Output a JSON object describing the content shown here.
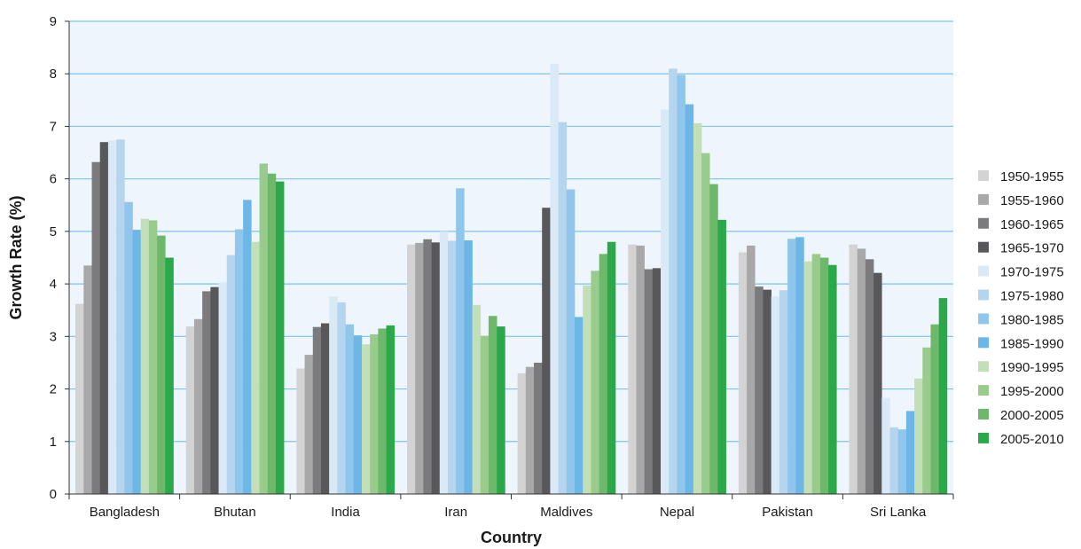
{
  "chart_data": {
    "type": "bar",
    "title": "",
    "xlabel": "Country",
    "ylabel": "Growth Rate (%)",
    "ylim": [
      0,
      9
    ],
    "yticks": [
      0,
      1,
      2,
      3,
      4,
      5,
      6,
      7,
      8,
      9
    ],
    "grid": true,
    "legend_position": "right",
    "plot_background": "#eef5fc",
    "grid_color": "#7fc4e8",
    "categories": [
      "Bangladesh",
      "Bhutan",
      "India",
      "Iran",
      "Maldives",
      "Nepal",
      "Pakistan",
      "Sri Lanka"
    ],
    "series": [
      {
        "name": "1950-1955",
        "color": "#d3d3d3",
        "values": [
          3.62,
          3.19,
          2.39,
          4.75,
          2.3,
          4.75,
          4.6,
          4.75
        ]
      },
      {
        "name": "1955-1960",
        "color": "#a8a8a8",
        "values": [
          4.35,
          3.33,
          2.65,
          4.78,
          2.42,
          4.73,
          4.73,
          4.67
        ]
      },
      {
        "name": "1960-1965",
        "color": "#7b7b7d",
        "values": [
          6.32,
          3.86,
          3.18,
          4.85,
          2.5,
          4.28,
          3.95,
          4.47
        ]
      },
      {
        "name": "1965-1970",
        "color": "#58585a",
        "values": [
          6.7,
          3.94,
          3.25,
          4.79,
          5.45,
          4.3,
          3.89,
          4.21
        ]
      },
      {
        "name": "1970-1975",
        "color": "#d9e9f6",
        "values": [
          6.73,
          4.03,
          3.76,
          5.0,
          8.19,
          7.32,
          3.76,
          1.83
        ]
      },
      {
        "name": "1975-1980",
        "color": "#b5d5ef",
        "values": [
          6.75,
          4.55,
          3.65,
          4.82,
          7.08,
          8.1,
          3.88,
          1.27
        ]
      },
      {
        "name": "1980-1985",
        "color": "#90c6ec",
        "values": [
          5.56,
          5.04,
          3.23,
          5.82,
          5.8,
          7.98,
          4.86,
          1.23
        ]
      },
      {
        "name": "1985-1990",
        "color": "#6db7e6",
        "values": [
          5.03,
          5.6,
          3.02,
          4.83,
          3.37,
          7.42,
          4.89,
          1.58
        ]
      },
      {
        "name": "1990-1995",
        "color": "#c3dfb7",
        "values": [
          5.24,
          4.8,
          2.85,
          3.6,
          3.97,
          7.06,
          4.43,
          2.2
        ]
      },
      {
        "name": "1995-2000",
        "color": "#99cc8c",
        "values": [
          5.21,
          6.29,
          3.04,
          3.01,
          4.25,
          6.49,
          4.57,
          2.79
        ]
      },
      {
        "name": "2000-2005",
        "color": "#6db86b",
        "values": [
          4.92,
          6.1,
          3.15,
          3.39,
          4.57,
          5.9,
          4.5,
          3.23
        ]
      },
      {
        "name": "2005-2010",
        "color": "#2aa84a",
        "values": [
          4.5,
          5.95,
          3.21,
          3.19,
          4.8,
          5.22,
          4.36,
          3.73
        ]
      }
    ]
  }
}
